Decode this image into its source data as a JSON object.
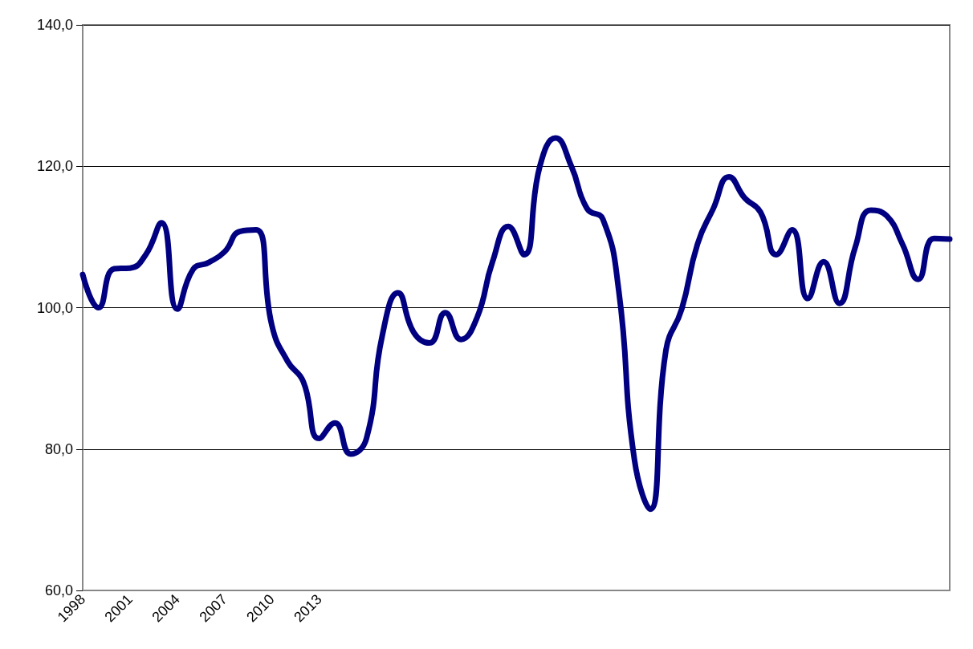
{
  "chart_data": {
    "type": "line",
    "color": "#000080",
    "categories": [
      "1998",
      null,
      null,
      "2001",
      null,
      null,
      "2004",
      null,
      null,
      "2007",
      null,
      null,
      "2010",
      null,
      null,
      "2013",
      null,
      null,
      null,
      null,
      null,
      null,
      null,
      null,
      null,
      null,
      null,
      null,
      null,
      null,
      null,
      null,
      null,
      null,
      null,
      null,
      null,
      null,
      null,
      null,
      null,
      null,
      null,
      null,
      null,
      null,
      null,
      null,
      null,
      null,
      null,
      null,
      null,
      null,
      null,
      null
    ],
    "values": [
      104.7,
      100.0,
      105.5,
      105.6,
      107.5,
      112.0,
      99.8,
      105.4,
      106.4,
      107.9,
      110.8,
      111.0,
      97.5,
      92.4,
      89.5,
      81.5,
      83.7,
      79.3,
      81.5,
      96.0,
      102.1,
      96.5,
      95.0,
      99.3,
      95.5,
      98.5,
      106.5,
      111.5,
      107.5,
      120.0,
      124.0,
      120.0,
      114.0,
      112.5,
      102.5,
      78.5,
      71.5,
      94.0,
      99.8,
      109.0,
      114.0,
      118.5,
      115.5,
      113.5,
      107.5,
      111.0,
      101.3,
      106.5,
      100.6,
      108.5,
      113.8,
      113.0,
      109.0,
      104.0,
      109.8,
      109.7
    ],
    "ylim": [
      60,
      140
    ],
    "yticks": [
      {
        "value": 60,
        "label": "60,0"
      },
      {
        "value": 80,
        "label": "80,0"
      },
      {
        "value": 100,
        "label": "100,0"
      },
      {
        "value": 120,
        "label": "120,0"
      },
      {
        "value": 140,
        "label": "140,0"
      }
    ],
    "grid": "y",
    "marker": "none",
    "line_style": "solid"
  }
}
